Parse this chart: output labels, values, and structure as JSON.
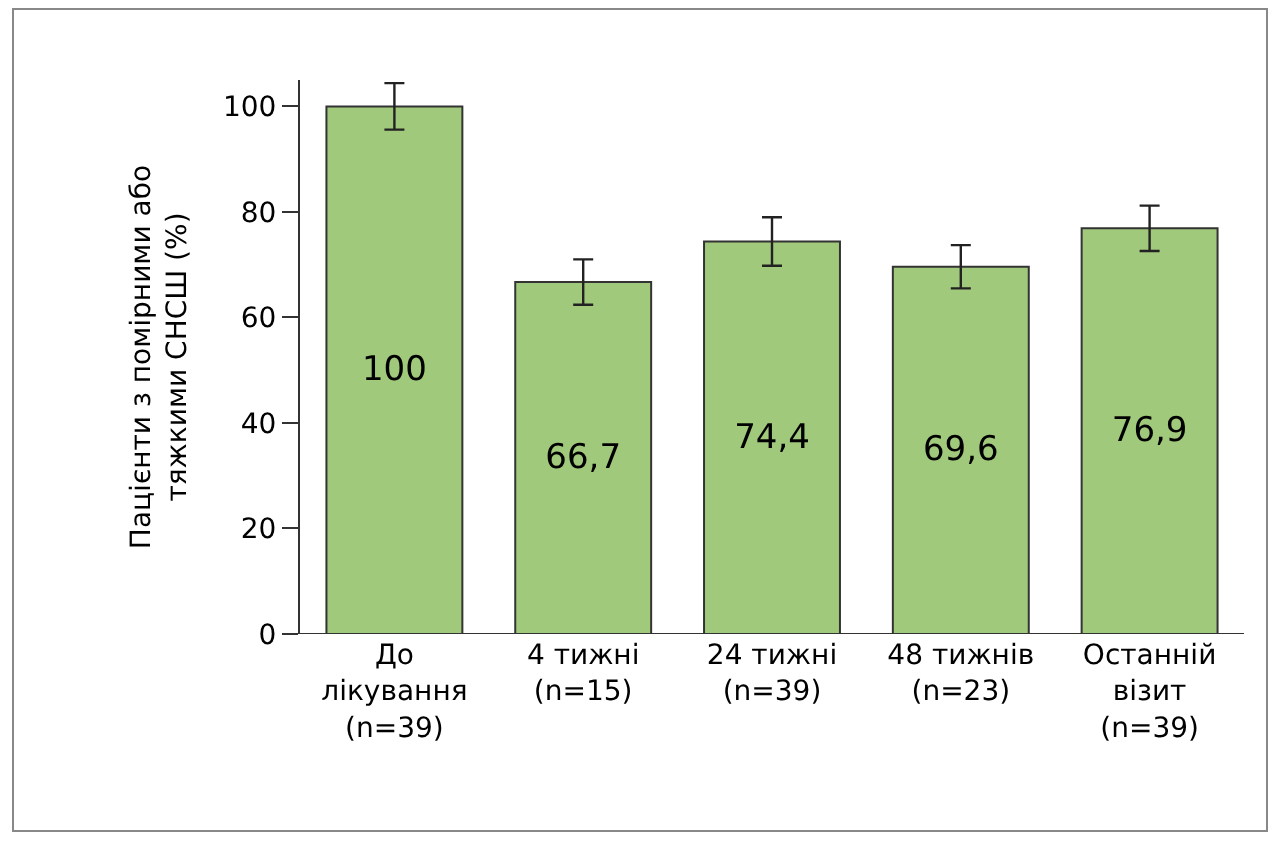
{
  "chart_data": {
    "type": "bar",
    "ylabel": "Пацієнти з помірними або\nтяжкими СНСШ (%)",
    "categories": [
      "До\nлікування\n(n=39)",
      "4 тижні\n(n=15)",
      "24 тижні\n(n=39)",
      "48 тижнів\n(n=23)",
      "Останній\nвізит\n(n=39)"
    ],
    "values": [
      100,
      66.7,
      74.4,
      69.6,
      76.9
    ],
    "errors": [
      4.4,
      4.3,
      4.6,
      4.1,
      4.3
    ],
    "color": "#a0c97c",
    "value_labels": [
      "100",
      "66,7",
      "74,4",
      "69,6",
      "76,9"
    ],
    "ylim": [
      0,
      105
    ],
    "yticks": [
      0,
      20,
      40,
      60,
      80,
      100
    ],
    "grid": false
  }
}
